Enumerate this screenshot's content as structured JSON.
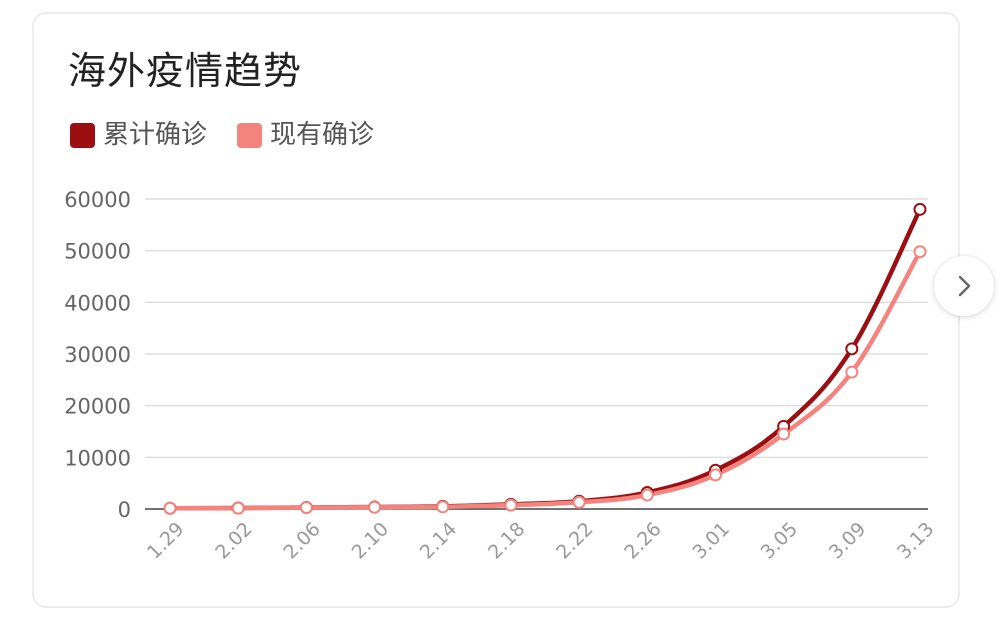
{
  "chart_data": {
    "type": "line",
    "title": "海外疫情趋势",
    "xlabel": "",
    "ylabel": "",
    "categories": [
      "1.29",
      "2.02",
      "2.06",
      "2.10",
      "2.14",
      "2.18",
      "2.22",
      "2.26",
      "3.01",
      "3.05",
      "3.09",
      "3.13"
    ],
    "yticks": [
      "0",
      "10000",
      "20000",
      "30000",
      "40000",
      "50000",
      "60000"
    ],
    "ylim": [
      0,
      60000
    ],
    "grid": true,
    "legend_position": "top-left",
    "series": [
      {
        "name": "累计确诊",
        "color": "#9b0f12",
        "values": [
          150,
          200,
          300,
          380,
          500,
          900,
          1500,
          3200,
          7500,
          16000,
          31000,
          58000
        ]
      },
      {
        "name": "现有确诊",
        "color": "#f5837d",
        "values": [
          150,
          180,
          270,
          340,
          420,
          750,
          1300,
          2700,
          6600,
          14500,
          26500,
          49800
        ]
      }
    ]
  },
  "nav": {
    "next_icon": "chevron-right-icon"
  }
}
